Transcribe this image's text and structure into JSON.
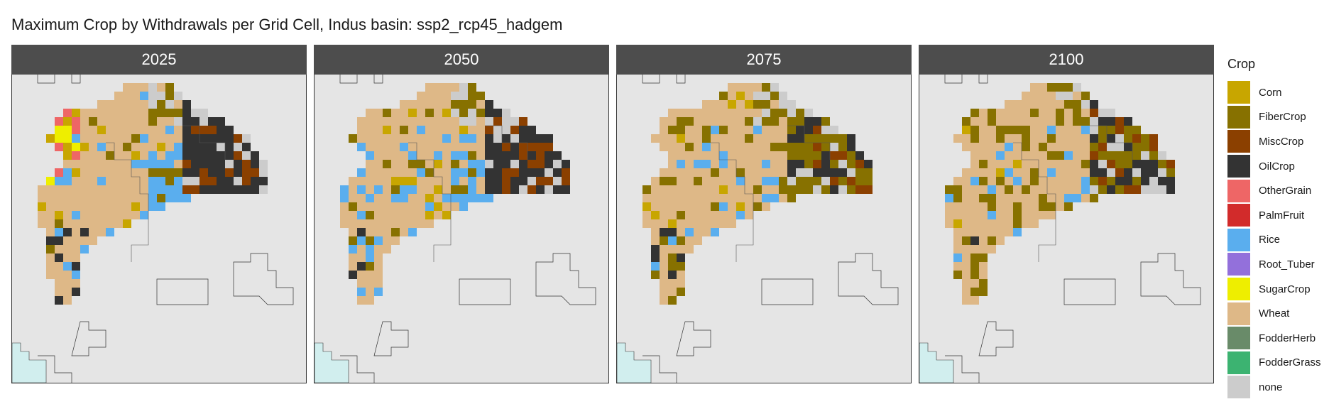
{
  "title": "Maximum Crop by Withdrawals per Grid Cell, Indus basin: ssp2_rcp45_hadgem",
  "facets": [
    {
      "label": "2025",
      "variant": 0
    },
    {
      "label": "2050",
      "variant": 1
    },
    {
      "label": "2075",
      "variant": 2
    },
    {
      "label": "2100",
      "variant": 3
    }
  ],
  "legend": {
    "title": "Crop",
    "items": [
      {
        "key": "Corn",
        "label": "Corn",
        "color": "#C8A600"
      },
      {
        "key": "FiberCrop",
        "label": "FiberCrop",
        "color": "#877100"
      },
      {
        "key": "MiscCrop",
        "label": "MiscCrop",
        "color": "#8B4000"
      },
      {
        "key": "OilCrop",
        "label": "OilCrop",
        "color": "#333333"
      },
      {
        "key": "OtherGrain",
        "label": "OtherGrain",
        "color": "#EE6666"
      },
      {
        "key": "PalmFruit",
        "label": "PalmFruit",
        "color": "#D22B2B"
      },
      {
        "key": "Rice",
        "label": "Rice",
        "color": "#5AAEEE"
      },
      {
        "key": "Root_Tuber",
        "label": "Root_Tuber",
        "color": "#9370DB"
      },
      {
        "key": "SugarCrop",
        "label": "SugarCrop",
        "color": "#EEEE00"
      },
      {
        "key": "Wheat",
        "label": "Wheat",
        "color": "#DEB887"
      },
      {
        "key": "FodderHerb",
        "label": "FodderHerb",
        "color": "#698B69"
      },
      {
        "key": "FodderGrass",
        "label": "FodderGrass",
        "color": "#3CB371"
      },
      {
        "key": "none",
        "label": "none",
        "color": "#CCCCCC"
      }
    ]
  }
}
